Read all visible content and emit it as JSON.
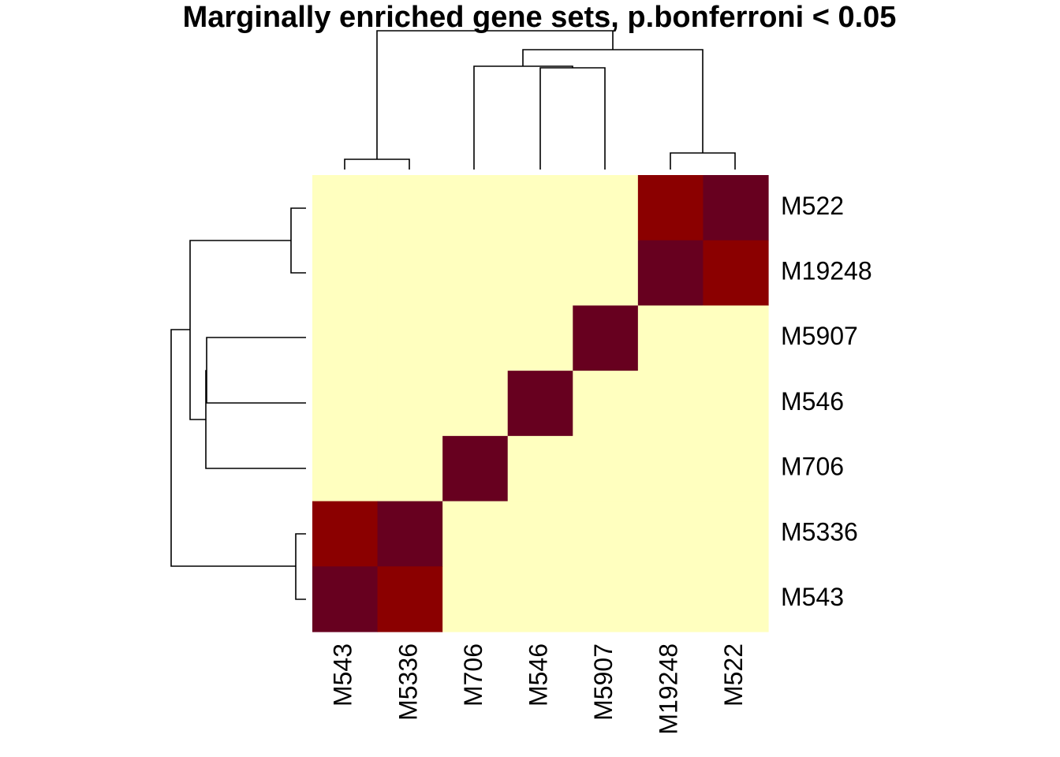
{
  "chart_data": {
    "type": "heatmap",
    "title": "Marginally enriched gene sets, p.bonferroni < 0.05",
    "x_labels": [
      "M543",
      "M5336",
      "M706",
      "M546",
      "M5907",
      "M19248",
      "M522"
    ],
    "y_labels": [
      "M522",
      "M19248",
      "M5907",
      "M546",
      "M706",
      "M5336",
      "M543"
    ],
    "values": [
      [
        0,
        0,
        0,
        0,
        0,
        0.8,
        1
      ],
      [
        0,
        0,
        0,
        0,
        0,
        1,
        0.8
      ],
      [
        0,
        0,
        0,
        0,
        1,
        0,
        0
      ],
      [
        0,
        0,
        0,
        1,
        0,
        0,
        0
      ],
      [
        0,
        0,
        1,
        0,
        0,
        0,
        0
      ],
      [
        0.8,
        1,
        0,
        0,
        0,
        0,
        0
      ],
      [
        1,
        0.8,
        0,
        0,
        0,
        0,
        0
      ]
    ],
    "colors": {
      "low": "#FFFFBF",
      "mid": "#8B0000",
      "high": "#67001F"
    },
    "dendrogram_columns": true,
    "dendrogram_rows": true
  }
}
